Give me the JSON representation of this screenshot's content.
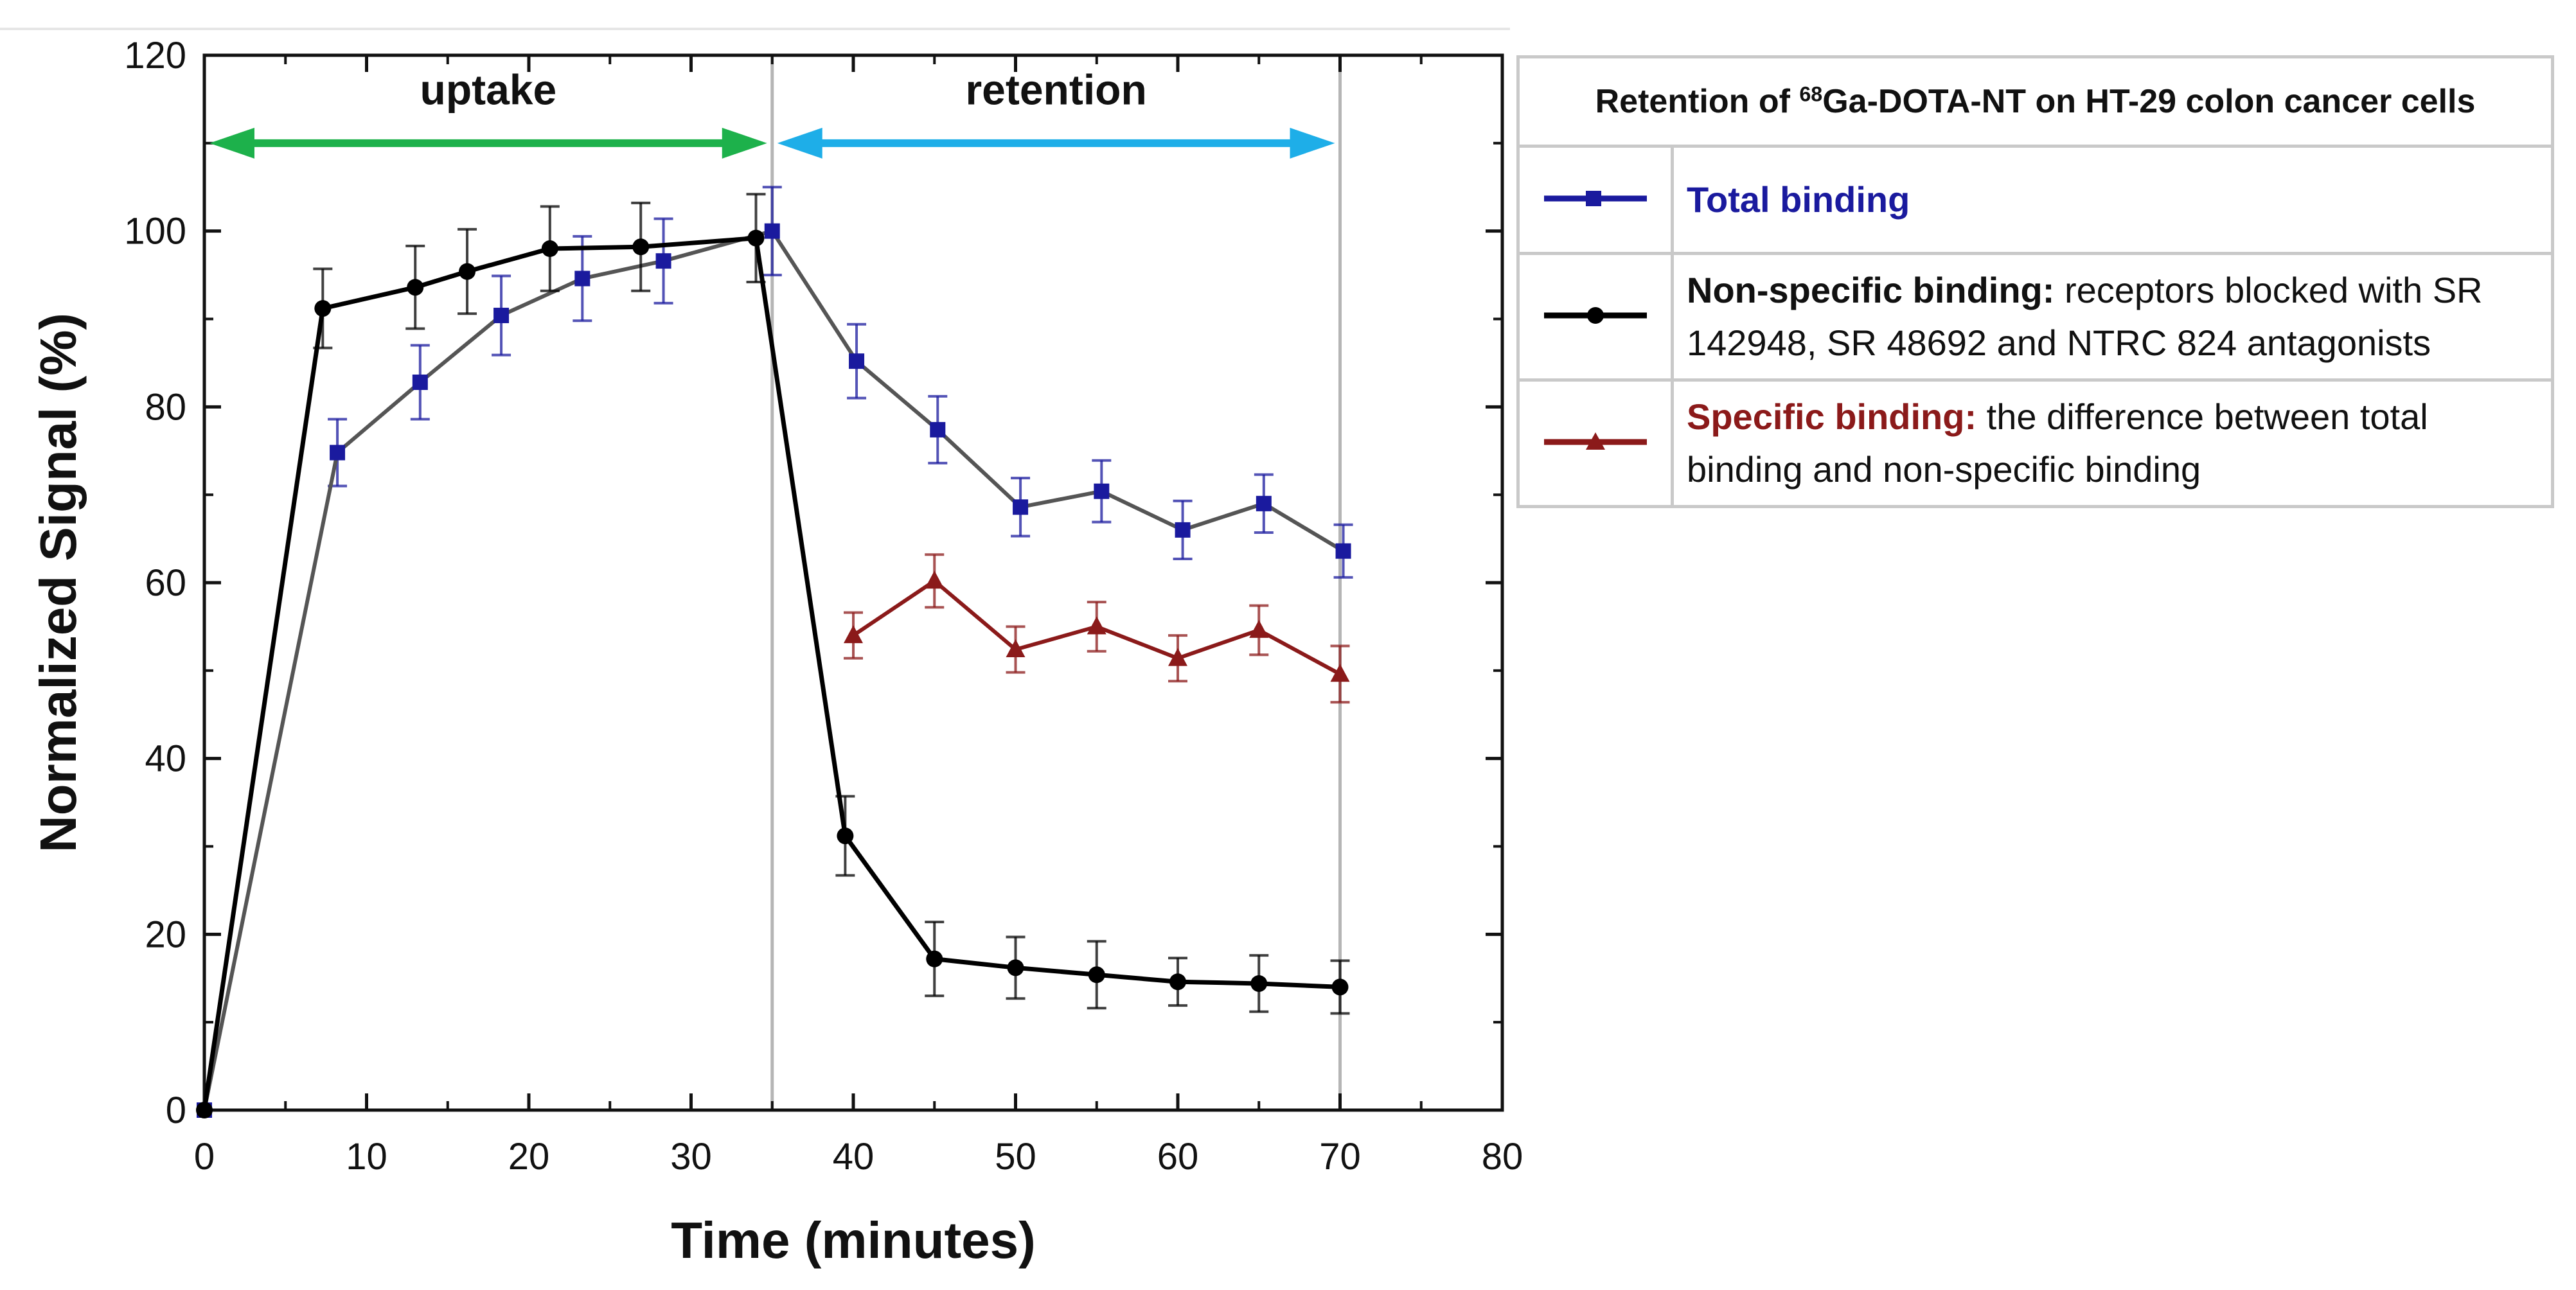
{
  "colors": {
    "total": "#1a1a9e",
    "total_line": "#555555",
    "nonspecific": "#000000",
    "specific": "#8b1a1a",
    "uptake_arrow": "#1db14b",
    "retention_arrow": "#1eaee8",
    "divider": "#b5b5b5"
  },
  "chart_data": {
    "type": "line",
    "title": "",
    "xlabel": "Time (minutes)",
    "ylabel": "Normalized Signal (%)",
    "xlim": [
      0,
      80
    ],
    "ylim": [
      0,
      120
    ],
    "xticks": [
      0,
      10,
      20,
      30,
      40,
      50,
      60,
      70,
      80
    ],
    "yticks": [
      0,
      20,
      40,
      60,
      80,
      100,
      120
    ],
    "phase_dividers": [
      35,
      70
    ],
    "phases": [
      {
        "label": "uptake",
        "from": 0,
        "to": 35
      },
      {
        "label": "retention",
        "from": 35,
        "to": 70
      }
    ],
    "series": [
      {
        "name": "Non-specific binding",
        "key": "nonspecific",
        "marker": "circle",
        "x": [
          0,
          7.3,
          13,
          16.2,
          21.3,
          26.9,
          34,
          39.5,
          45,
          50,
          55,
          60,
          65,
          70
        ],
        "y": [
          0,
          91.2,
          93.6,
          95.4,
          98,
          98.2,
          99.2,
          31.2,
          17.2,
          16.2,
          15.4,
          14.6,
          14.4,
          14
        ],
        "err": [
          0,
          4.5,
          4.7,
          4.8,
          4.8,
          5,
          5,
          4.5,
          4.2,
          3.5,
          3.8,
          2.7,
          3.2,
          3
        ]
      },
      {
        "name": "Total binding",
        "key": "total",
        "marker": "square",
        "x": [
          0,
          8.2,
          13.3,
          18.3,
          23.3,
          28.3,
          35,
          40.2,
          45.2,
          50.3,
          55.3,
          60.3,
          65.3,
          70.2
        ],
        "y": [
          0,
          74.8,
          82.8,
          90.4,
          94.6,
          96.6,
          100,
          85.2,
          77.4,
          68.6,
          70.4,
          66,
          69,
          63.6
        ],
        "err": [
          0,
          3.8,
          4.2,
          4.5,
          4.8,
          4.8,
          5,
          4.2,
          3.8,
          3.3,
          3.5,
          3.3,
          3.3,
          3
        ]
      },
      {
        "name": "Specific binding",
        "key": "specific",
        "marker": "triangle",
        "x": [
          40,
          45,
          50,
          55,
          60,
          65,
          70
        ],
        "y": [
          54,
          60.2,
          52.4,
          55,
          51.4,
          54.6,
          49.6
        ],
        "err": [
          2.6,
          3,
          2.6,
          2.8,
          2.6,
          2.8,
          3.2
        ]
      }
    ]
  },
  "legend": {
    "title_pre": "Retention of ",
    "title_sup": "68",
    "title_post": "Ga-DOTA-NT on HT-29 colon cancer cells",
    "rows": [
      {
        "label": "Total binding",
        "text": ""
      },
      {
        "label": "Non-specific binding:",
        "text": " receptors blocked with SR 142948, SR 48692 and NTRC 824 antagonists"
      },
      {
        "label": "Specific binding:",
        "text": " the difference between total binding and non-specific binding"
      }
    ]
  }
}
